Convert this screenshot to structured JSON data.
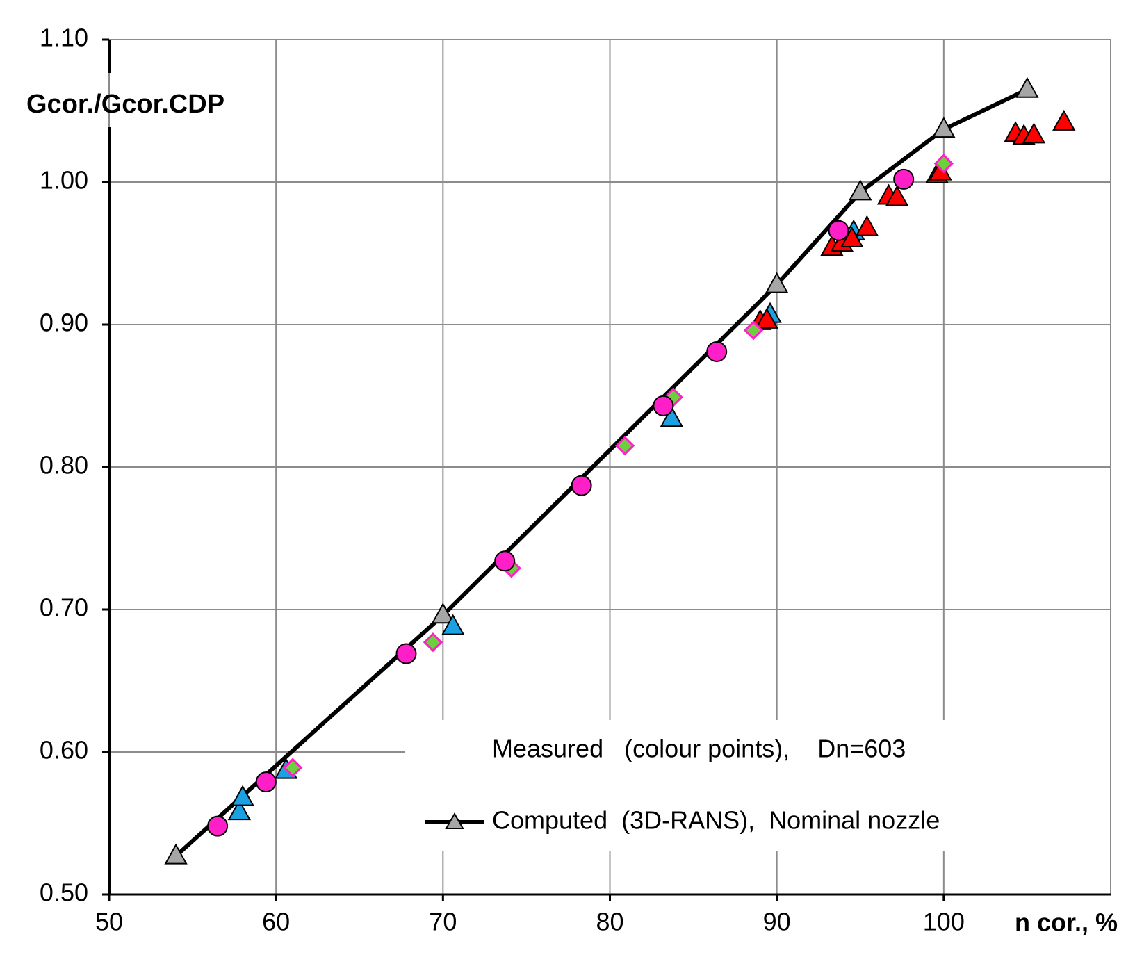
{
  "chart_data": {
    "type": "scatter",
    "y_label": "Gcor./Gcor.CDP",
    "x_label": "n cor., %",
    "annotation": "Measured   (colour points),    Dn=603",
    "xlim": [
      50,
      110
    ],
    "xticks": [
      50,
      60,
      70,
      80,
      90,
      100
    ],
    "ylim": [
      0.5,
      1.1
    ],
    "yticks": [
      {
        "value": 0.5,
        "label": "0.50"
      },
      {
        "value": 0.6,
        "label": "0.60"
      },
      {
        "value": 0.7,
        "label": "0.70"
      },
      {
        "value": 0.8,
        "label": "0.80"
      },
      {
        "value": 0.9,
        "label": "0.90"
      },
      {
        "value": 1.0,
        "label": "1.00"
      },
      {
        "value": 1.1,
        "label": "1.10"
      }
    ],
    "grid": true,
    "series": [
      {
        "name": "Computed  (3D-RANS),  Nominal nozzle",
        "marker": "triangle",
        "color": "#a6a6a6",
        "line_color": "#000000",
        "x": [
          54,
          70,
          90,
          95,
          100,
          105
        ],
        "values": [
          0.527,
          0.696,
          0.928,
          0.993,
          1.037,
          1.065
        ]
      },
      {
        "marker": "triangle",
        "color": "#1ba1e2",
        "x": [
          57.8,
          58,
          60.6,
          70.6,
          83.7,
          89.6,
          94.6
        ],
        "values": [
          0.558,
          0.568,
          0.587,
          0.688,
          0.834,
          0.907,
          0.965
        ]
      },
      {
        "marker": "triangle",
        "color": "#ff0000",
        "x": [
          89,
          89.4,
          93.3,
          93.9,
          94.5,
          95.4,
          96.7,
          97.2,
          99.6,
          99.8,
          104.3,
          104.8,
          105.4,
          107.2
        ],
        "values": [
          0.902,
          0.903,
          0.954,
          0.957,
          0.96,
          0.968,
          0.99,
          0.989,
          1.005,
          1.007,
          1.034,
          1.032,
          1.033,
          1.042
        ]
      },
      {
        "marker": "diamond",
        "color": "#6ccf3c",
        "x": [
          61,
          69.4,
          74.1,
          80.9,
          83.8,
          88.6,
          100
        ],
        "values": [
          0.589,
          0.677,
          0.729,
          0.815,
          0.849,
          0.896,
          1.013
        ]
      },
      {
        "marker": "circle",
        "color": "#ff1fc8",
        "x": [
          56.5,
          59.4,
          67.8,
          73.7,
          78.3,
          83.2,
          86.4,
          93.7,
          97.6
        ],
        "values": [
          0.548,
          0.579,
          0.669,
          0.734,
          0.787,
          0.843,
          0.881,
          0.966,
          1.002
        ]
      }
    ]
  }
}
